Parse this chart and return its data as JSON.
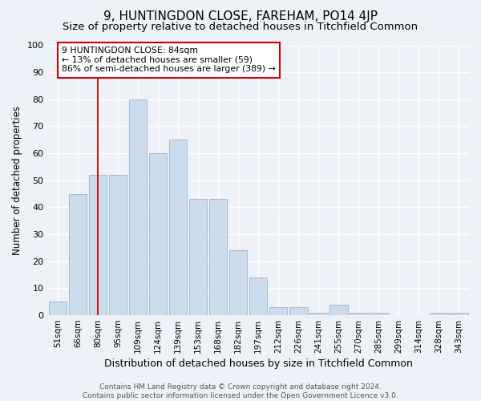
{
  "title": "9, HUNTINGDON CLOSE, FAREHAM, PO14 4JP",
  "subtitle": "Size of property relative to detached houses in Titchfield Common",
  "xlabel": "Distribution of detached houses by size in Titchfield Common",
  "ylabel": "Number of detached properties",
  "categories": [
    "51sqm",
    "66sqm",
    "80sqm",
    "95sqm",
    "109sqm",
    "124sqm",
    "139sqm",
    "153sqm",
    "168sqm",
    "182sqm",
    "197sqm",
    "212sqm",
    "226sqm",
    "241sqm",
    "255sqm",
    "270sqm",
    "285sqm",
    "299sqm",
    "314sqm",
    "328sqm",
    "343sqm"
  ],
  "values": [
    5,
    45,
    52,
    52,
    80,
    60,
    65,
    43,
    43,
    24,
    14,
    3,
    3,
    1,
    4,
    1,
    1,
    0,
    0,
    1,
    1
  ],
  "bar_color": "#ccdcec",
  "bar_edge_color": "#a0bcd4",
  "background_color": "#eef2f8",
  "grid_color": "#ffffff",
  "annotation_text": "9 HUNTINGDON CLOSE: 84sqm\n← 13% of detached houses are smaller (59)\n86% of semi-detached houses are larger (389) →",
  "annotation_box_color": "#ffffff",
  "annotation_box_edge": "#cc0000",
  "vline_color": "#cc0000",
  "vline_x": 2.0,
  "ylim": [
    0,
    100
  ],
  "yticks": [
    0,
    10,
    20,
    30,
    40,
    50,
    60,
    70,
    80,
    90,
    100
  ],
  "footer": "Contains HM Land Registry data © Crown copyright and database right 2024.\nContains public sector information licensed under the Open Government Licence v3.0.",
  "title_fontsize": 11,
  "subtitle_fontsize": 9.5,
  "ylabel_fontsize": 8.5,
  "xlabel_fontsize": 9,
  "tick_fontsize": 7.5,
  "footer_fontsize": 6.5
}
